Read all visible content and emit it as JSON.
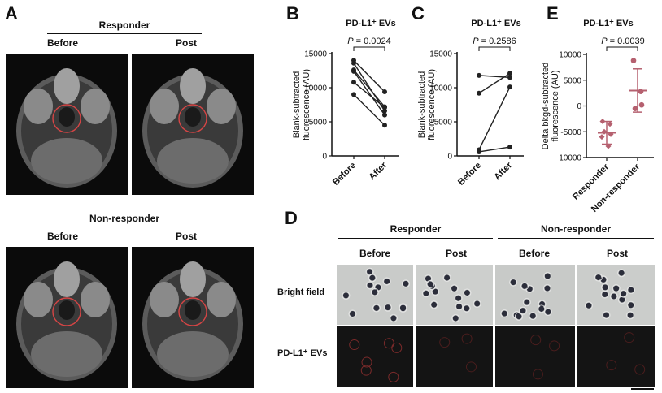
{
  "panel_a": {
    "label": "A",
    "responder": {
      "title": "Responder",
      "before": "Before",
      "post": "Post"
    },
    "non_responder": {
      "title": "Non-responder",
      "before": "Before",
      "post": "Post"
    }
  },
  "panel_d": {
    "label": "D",
    "responder": {
      "title": "Responder",
      "before": "Before",
      "post": "Post"
    },
    "non_responder": {
      "title": "Non-responder",
      "before": "Before",
      "post": "Post"
    },
    "rows": [
      "Bright field",
      "PD-L1⁺ EVs"
    ]
  },
  "chart_data": [
    {
      "panel": "B",
      "type": "line",
      "title": "PD-L1⁺ EVs",
      "ylabel": "Blank-subtracted fluorescence (AU)",
      "categories": [
        "Before",
        "After"
      ],
      "ylim": [
        0,
        15000
      ],
      "yticks": [
        0,
        5000,
        10000,
        15000
      ],
      "pvalue": "P = 0.0024",
      "pairs": [
        [
          14000,
          9400
        ],
        [
          13600,
          6600
        ],
        [
          12600,
          7200
        ],
        [
          12400,
          6000
        ],
        [
          10800,
          7100
        ],
        [
          9000,
          4500
        ]
      ]
    },
    {
      "panel": "C",
      "type": "line",
      "title": "PD-L1⁺ EVs",
      "ylabel": "Blank-subtracted fluorescence (AU)",
      "categories": [
        "Before",
        "After"
      ],
      "ylim": [
        0,
        15000
      ],
      "yticks": [
        0,
        5000,
        10000,
        15000
      ],
      "pvalue": "P = 0.2586",
      "pairs": [
        [
          11800,
          11500
        ],
        [
          9200,
          12100
        ],
        [
          900,
          10100
        ],
        [
          600,
          1300
        ]
      ]
    },
    {
      "panel": "E",
      "type": "scatter",
      "title": "PD-L1⁺ EVs",
      "ylabel": "Delta bkgd-subtracted fluorescence (AU)",
      "categories": [
        "Responder",
        "Non-responder"
      ],
      "ylim": [
        -10000,
        10000
      ],
      "yticks": [
        -10000,
        -5000,
        0,
        5000,
        10000
      ],
      "pvalue": "P = 0.0039",
      "points": [
        [
          -3000,
          -3500,
          -5000,
          -5500,
          -6000,
          -7800
        ],
        [
          8800,
          2800,
          -500,
          200
        ]
      ],
      "mean": [
        -5200,
        3000
      ],
      "sd": [
        2200,
        4200
      ],
      "color": "#b5606f"
    }
  ]
}
